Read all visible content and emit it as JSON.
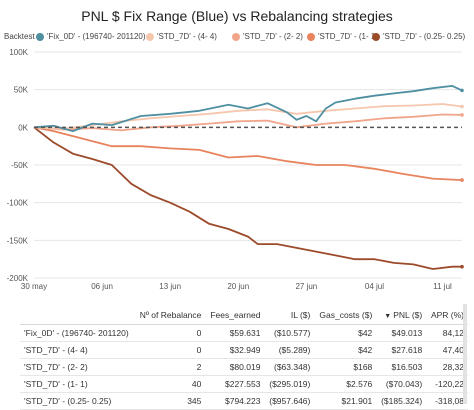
{
  "chart_data": {
    "type": "line",
    "title": "PNL $ Fix Range (Blue) vs Rebalancing strategies",
    "legend_title": "Backtest",
    "legend_position": "top",
    "ylim": [
      -200000,
      100000
    ],
    "yticks": [
      100000,
      50000,
      0,
      -50000,
      -100000,
      -150000,
      -200000
    ],
    "ytick_labels": [
      "100K",
      "50K",
      "0K",
      "-50K",
      "-100K",
      "-150K",
      "-200K"
    ],
    "xlim": [
      "2023-05-30",
      "2023-07-13"
    ],
    "xticks": [
      "2023-05-30",
      "2023-06-06",
      "2023-06-13",
      "2023-06-20",
      "2023-06-27",
      "2023-07-04",
      "2023-07-11"
    ],
    "xtick_labels": [
      "30 may",
      "06 jun",
      "13 jun",
      "20 jun",
      "27 jun",
      "04 jul",
      "11 jul"
    ],
    "grid": true,
    "zero_line": "dashed",
    "series": [
      {
        "name": "'Fix_0D' - (196740- 201120)",
        "color": "#4e8fa1",
        "x": [
          "2023-05-30",
          "2023-06-01",
          "2023-06-03",
          "2023-06-05",
          "2023-06-07",
          "2023-06-10",
          "2023-06-13",
          "2023-06-16",
          "2023-06-19",
          "2023-06-21",
          "2023-06-23",
          "2023-06-25",
          "2023-06-26",
          "2023-06-27",
          "2023-06-28",
          "2023-06-29",
          "2023-06-30",
          "2023-07-02",
          "2023-07-04",
          "2023-07-06",
          "2023-07-08",
          "2023-07-10",
          "2023-07-12",
          "2023-07-13"
        ],
        "y": [
          0,
          2000,
          -5000,
          5000,
          3000,
          15000,
          18000,
          22000,
          30000,
          25000,
          32000,
          20000,
          10000,
          15000,
          8000,
          25000,
          33000,
          38000,
          42000,
          45000,
          48000,
          52000,
          55000,
          49000
        ]
      },
      {
        "name": "'STD_7D' - (4- 4)",
        "color": "#f6c7ad",
        "x": [
          "2023-05-30",
          "2023-06-02",
          "2023-06-05",
          "2023-06-08",
          "2023-06-11",
          "2023-06-14",
          "2023-06-17",
          "2023-06-20",
          "2023-06-23",
          "2023-06-26",
          "2023-06-29",
          "2023-07-02",
          "2023-07-05",
          "2023-07-08",
          "2023-07-11",
          "2023-07-13"
        ],
        "y": [
          0,
          -2000,
          3000,
          8000,
          12000,
          15000,
          18000,
          22000,
          24000,
          18000,
          22000,
          25000,
          28000,
          29000,
          31000,
          27600
        ]
      },
      {
        "name": "'STD_7D' - (2- 2)",
        "color": "#f1a58a",
        "x": [
          "2023-05-30",
          "2023-06-02",
          "2023-06-05",
          "2023-06-08",
          "2023-06-11",
          "2023-06-14",
          "2023-06-17",
          "2023-06-20",
          "2023-06-23",
          "2023-06-26",
          "2023-06-29",
          "2023-07-02",
          "2023-07-05",
          "2023-07-08",
          "2023-07-11",
          "2023-07-13"
        ],
        "y": [
          0,
          -3000,
          -1000,
          -4000,
          0,
          2000,
          5000,
          8000,
          9000,
          0,
          5000,
          8000,
          12000,
          14000,
          17000,
          16500
        ]
      },
      {
        "name": "'STD_7D' - (1- 1)",
        "color": "#e8835d",
        "x": [
          "2023-05-30",
          "2023-06-01",
          "2023-06-04",
          "2023-06-07",
          "2023-06-10",
          "2023-06-13",
          "2023-06-16",
          "2023-06-19",
          "2023-06-22",
          "2023-06-25",
          "2023-06-28",
          "2023-07-01",
          "2023-07-04",
          "2023-07-07",
          "2023-07-10",
          "2023-07-13"
        ],
        "y": [
          0,
          -5000,
          -15000,
          -25000,
          -25000,
          -28000,
          -30000,
          -40000,
          -38000,
          -45000,
          -50000,
          -50000,
          -55000,
          -62000,
          -68000,
          -70000
        ]
      },
      {
        "name": "'STD_7D' - (0.25- 0.25)",
        "color": "#9c4a2a",
        "x": [
          "2023-05-30",
          "2023-06-01",
          "2023-06-03",
          "2023-06-05",
          "2023-06-07",
          "2023-06-09",
          "2023-06-11",
          "2023-06-13",
          "2023-06-15",
          "2023-06-17",
          "2023-06-19",
          "2023-06-21",
          "2023-06-22",
          "2023-06-24",
          "2023-06-26",
          "2023-06-28",
          "2023-06-30",
          "2023-07-02",
          "2023-07-04",
          "2023-07-06",
          "2023-07-08",
          "2023-07-10",
          "2023-07-12",
          "2023-07-13"
        ],
        "y": [
          0,
          -20000,
          -35000,
          -42000,
          -50000,
          -75000,
          -90000,
          -100000,
          -112000,
          -128000,
          -135000,
          -145000,
          -155000,
          -155000,
          -160000,
          -165000,
          -170000,
          -175000,
          -175000,
          -180000,
          -182000,
          -188000,
          -185000,
          -185000
        ]
      }
    ]
  },
  "table": {
    "columns": [
      "",
      "Nº of Rebalance",
      "Fees_earned",
      "IL ($)",
      "Gas_costs ($)",
      "PNL ($)",
      "APR (%)"
    ],
    "sorted_column": "PNL ($)",
    "rows": [
      {
        "name": "'Fix_0D' - (196740- 201120)",
        "rebalance": "0",
        "fees": "$59.631",
        "il": "($10.577)",
        "gas": "$42",
        "pnl": "$49.013",
        "apr": "84,12"
      },
      {
        "name": "'STD_7D' - (4- 4)",
        "rebalance": "0",
        "fees": "$32.949",
        "il": "($5.289)",
        "gas": "$42",
        "pnl": "$27.618",
        "apr": "47,40"
      },
      {
        "name": "'STD_7D' - (2- 2)",
        "rebalance": "2",
        "fees": "$80.019",
        "il": "($63.348)",
        "gas": "$168",
        "pnl": "$16.503",
        "apr": "28,32"
      },
      {
        "name": "'STD_7D' - (1- 1)",
        "rebalance": "40",
        "fees": "$227.553",
        "il": "($295.019)",
        "gas": "$2.576",
        "pnl": "($70.043)",
        "apr": "-120,22"
      },
      {
        "name": "'STD_7D' - (0.25- 0.25)",
        "rebalance": "345",
        "fees": "$794.223",
        "il": "($957.646)",
        "gas": "$21.901",
        "pnl": "($185.324)",
        "apr": "-318,08"
      }
    ]
  }
}
